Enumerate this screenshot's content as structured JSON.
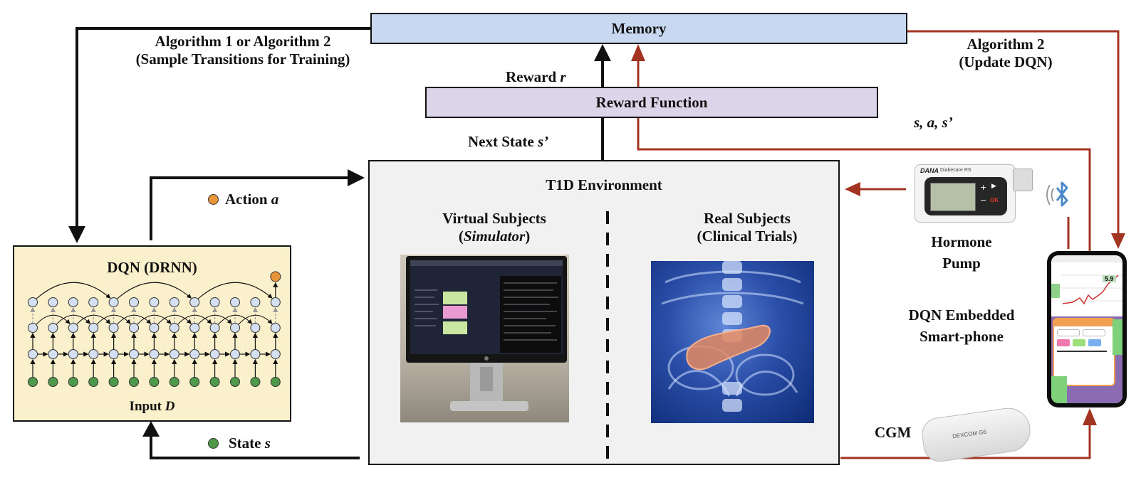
{
  "memory": {
    "label": "Memory"
  },
  "reward_function": {
    "label": "Reward Function"
  },
  "labels": {
    "algorithm_left_line1": "Algorithm 1 or Algorithm 2",
    "algorithm_left_line2": "(Sample Transitions for Training)",
    "algorithm_right_line1": "Algorithm 2",
    "algorithm_right_line2": "(Update DQN)",
    "reward_prefix": "Reward ",
    "reward_var": "r",
    "next_state_prefix": "Next State ",
    "next_state_var": "s’",
    "action_prefix": "Action ",
    "action_var": "a",
    "state_prefix": "State ",
    "state_var": "s",
    "sas": "s, a, s’"
  },
  "dqn": {
    "title": "DQN (DRNN)",
    "input_prefix": "Input ",
    "input_var": "D"
  },
  "environment": {
    "title": "T1D Environment",
    "virtual_line1": "Virtual Subjects",
    "virtual_line2_open": "(",
    "virtual_line2_italic": "Simulator",
    "virtual_line2_close": ")",
    "real_line1": "Real Subjects",
    "real_line2": "(Clinical Trials)"
  },
  "devices": {
    "pump_line1": "Hormone",
    "pump_line2": "Pump",
    "phone_line1": "DQN Embedded",
    "phone_line2": "Smart-phone",
    "cgm": "CGM",
    "pump_brand": "DANA",
    "pump_model": "Diabecare RS",
    "pump_ok": "OK",
    "cgm_brand": "DEXCOM G6",
    "phone_reading": "5.9"
  },
  "colors": {
    "memory_fill": "#c9d8f1",
    "reward_fill": "#dcd5ea",
    "dqn_fill": "#fbf0cc",
    "env_fill": "#f1f1f1",
    "arrow_black": "#111111",
    "arrow_red": "#a23421",
    "node_input": "#4f9a4a",
    "node_hidden": "#d4e0f2",
    "node_output": "#e8953a",
    "bluetooth": "#4a88c7"
  }
}
